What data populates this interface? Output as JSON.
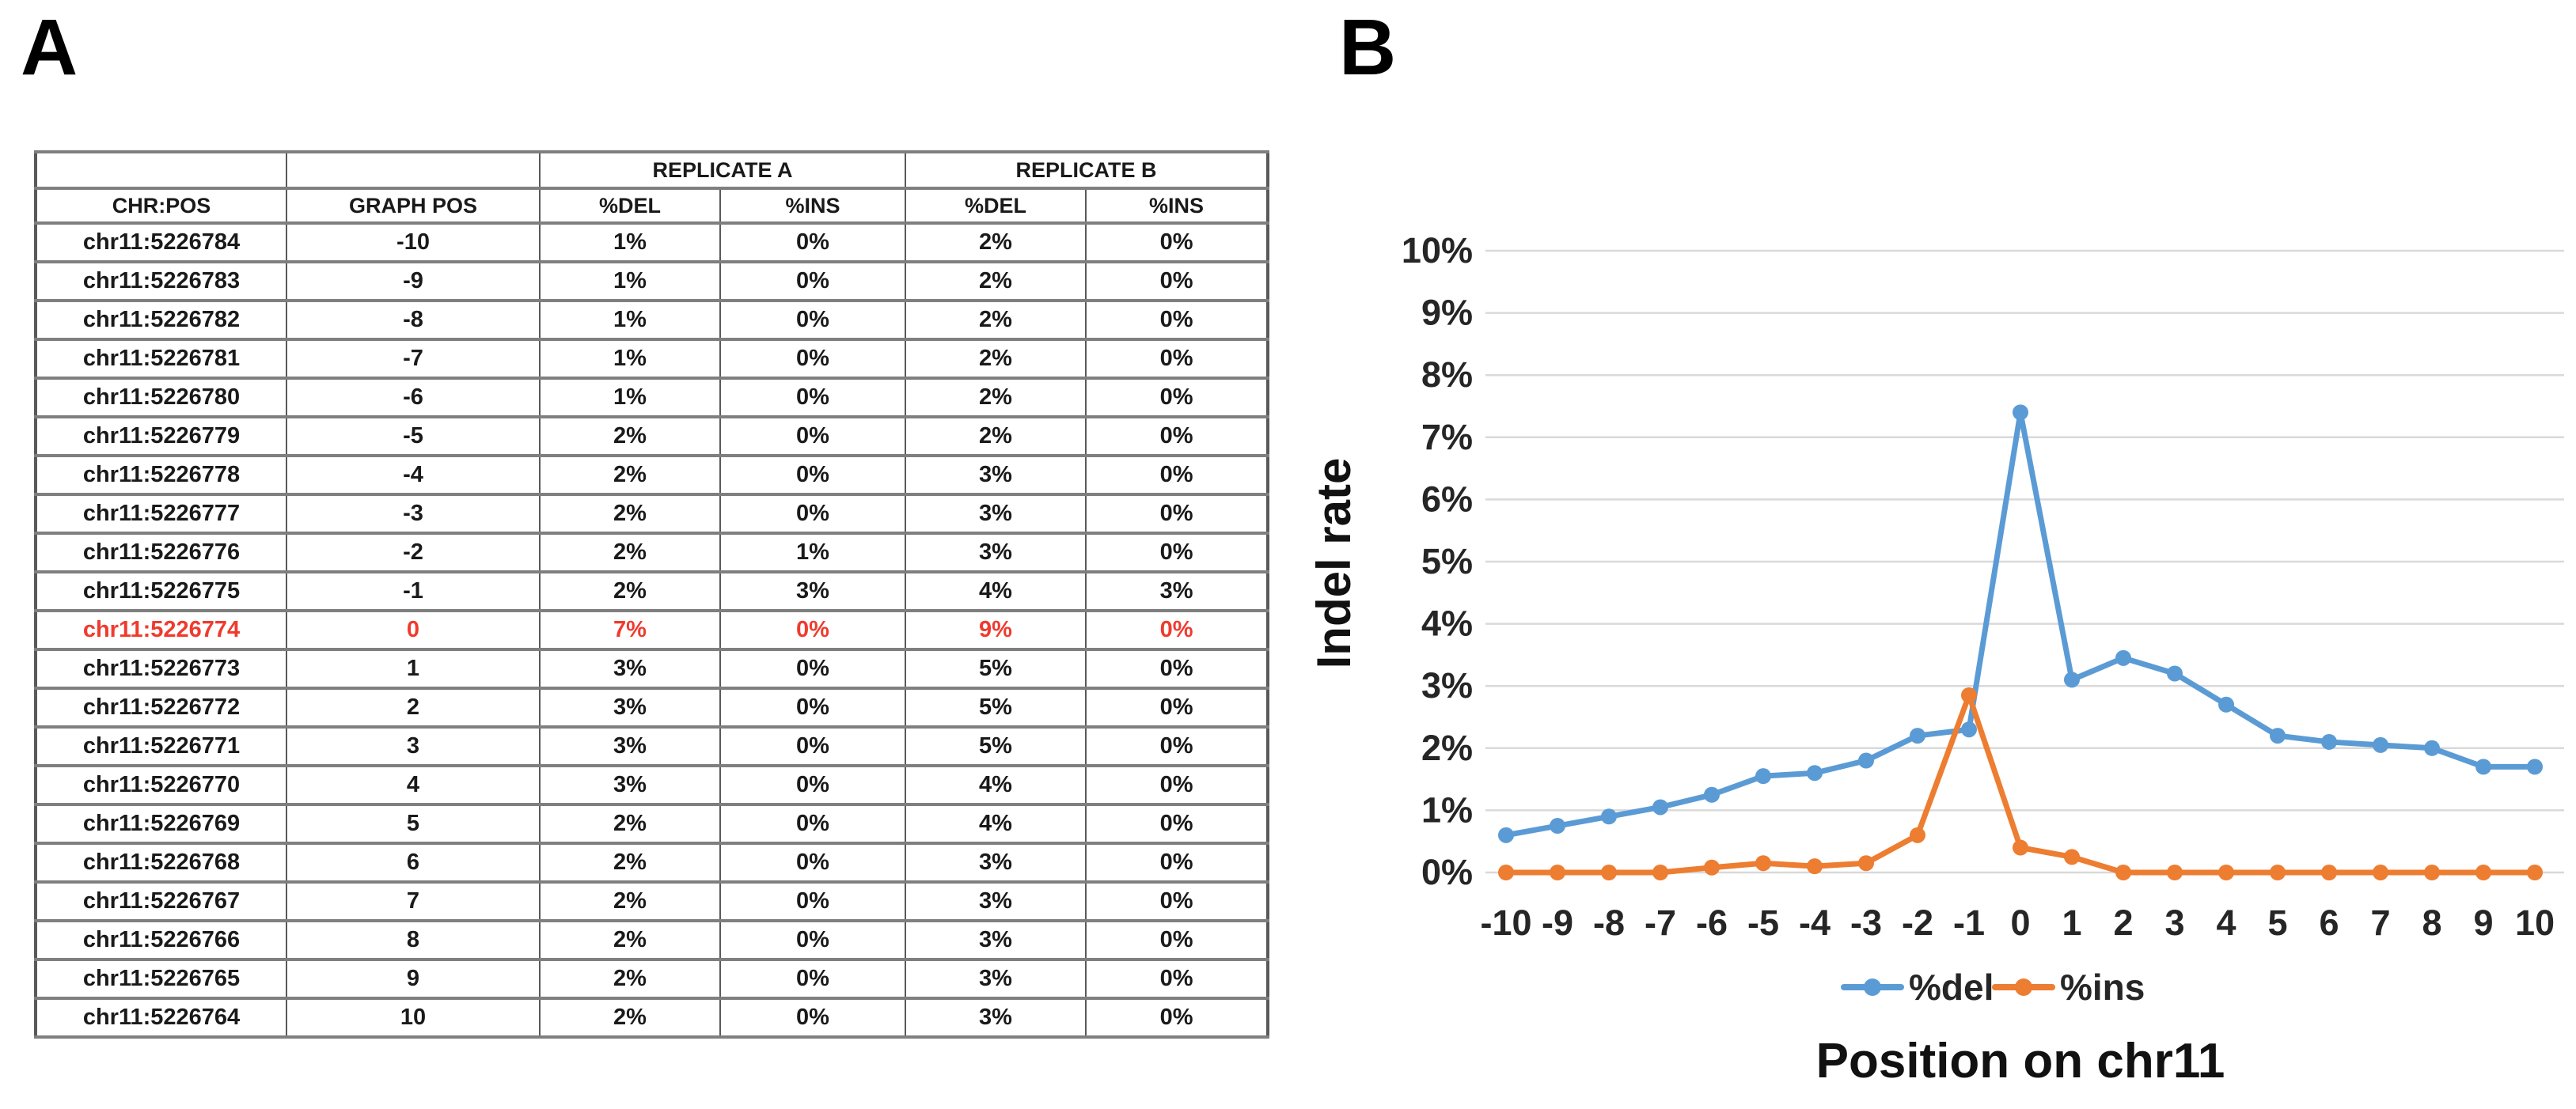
{
  "panels": {
    "a_label": "A",
    "b_label": "B"
  },
  "table": {
    "headers": {
      "chr_pos": "CHR:POS",
      "graph_pos": "GRAPH POS",
      "replicate_a": "REPLICATE A",
      "replicate_b": "REPLICATE B",
      "del": "%DEL",
      "ins": "%INS"
    },
    "rows": [
      {
        "chr_pos": "chr11:5226784",
        "graph_pos": "-10",
        "a_del": "1%",
        "a_ins": "0%",
        "b_del": "2%",
        "b_ins": "0%",
        "highlight": false
      },
      {
        "chr_pos": "chr11:5226783",
        "graph_pos": "-9",
        "a_del": "1%",
        "a_ins": "0%",
        "b_del": "2%",
        "b_ins": "0%",
        "highlight": false
      },
      {
        "chr_pos": "chr11:5226782",
        "graph_pos": "-8",
        "a_del": "1%",
        "a_ins": "0%",
        "b_del": "2%",
        "b_ins": "0%",
        "highlight": false
      },
      {
        "chr_pos": "chr11:5226781",
        "graph_pos": "-7",
        "a_del": "1%",
        "a_ins": "0%",
        "b_del": "2%",
        "b_ins": "0%",
        "highlight": false
      },
      {
        "chr_pos": "chr11:5226780",
        "graph_pos": "-6",
        "a_del": "1%",
        "a_ins": "0%",
        "b_del": "2%",
        "b_ins": "0%",
        "highlight": false
      },
      {
        "chr_pos": "chr11:5226779",
        "graph_pos": "-5",
        "a_del": "2%",
        "a_ins": "0%",
        "b_del": "2%",
        "b_ins": "0%",
        "highlight": false
      },
      {
        "chr_pos": "chr11:5226778",
        "graph_pos": "-4",
        "a_del": "2%",
        "a_ins": "0%",
        "b_del": "3%",
        "b_ins": "0%",
        "highlight": false
      },
      {
        "chr_pos": "chr11:5226777",
        "graph_pos": "-3",
        "a_del": "2%",
        "a_ins": "0%",
        "b_del": "3%",
        "b_ins": "0%",
        "highlight": false
      },
      {
        "chr_pos": "chr11:5226776",
        "graph_pos": "-2",
        "a_del": "2%",
        "a_ins": "1%",
        "b_del": "3%",
        "b_ins": "0%",
        "highlight": false
      },
      {
        "chr_pos": "chr11:5226775",
        "graph_pos": "-1",
        "a_del": "2%",
        "a_ins": "3%",
        "b_del": "4%",
        "b_ins": "3%",
        "highlight": false
      },
      {
        "chr_pos": "chr11:5226774",
        "graph_pos": "0",
        "a_del": "7%",
        "a_ins": "0%",
        "b_del": "9%",
        "b_ins": "0%",
        "highlight": true
      },
      {
        "chr_pos": "chr11:5226773",
        "graph_pos": "1",
        "a_del": "3%",
        "a_ins": "0%",
        "b_del": "5%",
        "b_ins": "0%",
        "highlight": false
      },
      {
        "chr_pos": "chr11:5226772",
        "graph_pos": "2",
        "a_del": "3%",
        "a_ins": "0%",
        "b_del": "5%",
        "b_ins": "0%",
        "highlight": false
      },
      {
        "chr_pos": "chr11:5226771",
        "graph_pos": "3",
        "a_del": "3%",
        "a_ins": "0%",
        "b_del": "5%",
        "b_ins": "0%",
        "highlight": false
      },
      {
        "chr_pos": "chr11:5226770",
        "graph_pos": "4",
        "a_del": "3%",
        "a_ins": "0%",
        "b_del": "4%",
        "b_ins": "0%",
        "highlight": false
      },
      {
        "chr_pos": "chr11:5226769",
        "graph_pos": "5",
        "a_del": "2%",
        "a_ins": "0%",
        "b_del": "4%",
        "b_ins": "0%",
        "highlight": false
      },
      {
        "chr_pos": "chr11:5226768",
        "graph_pos": "6",
        "a_del": "2%",
        "a_ins": "0%",
        "b_del": "3%",
        "b_ins": "0%",
        "highlight": false
      },
      {
        "chr_pos": "chr11:5226767",
        "graph_pos": "7",
        "a_del": "2%",
        "a_ins": "0%",
        "b_del": "3%",
        "b_ins": "0%",
        "highlight": false
      },
      {
        "chr_pos": "chr11:5226766",
        "graph_pos": "8",
        "a_del": "2%",
        "a_ins": "0%",
        "b_del": "3%",
        "b_ins": "0%",
        "highlight": false
      },
      {
        "chr_pos": "chr11:5226765",
        "graph_pos": "9",
        "a_del": "2%",
        "a_ins": "0%",
        "b_del": "3%",
        "b_ins": "0%",
        "highlight": false
      },
      {
        "chr_pos": "chr11:5226764",
        "graph_pos": "10",
        "a_del": "2%",
        "a_ins": "0%",
        "b_del": "3%",
        "b_ins": "0%",
        "highlight": false
      }
    ]
  },
  "chart_data": {
    "type": "line",
    "x": [
      -10,
      -9,
      -8,
      -7,
      -6,
      -5,
      -4,
      -3,
      -2,
      -1,
      0,
      1,
      2,
      3,
      4,
      5,
      6,
      7,
      8,
      9,
      10
    ],
    "series": [
      {
        "name": "%del",
        "color": "#5B9BD5",
        "values": [
          0.6,
          0.75,
          0.9,
          1.05,
          1.25,
          1.55,
          1.6,
          1.8,
          2.2,
          2.3,
          7.4,
          3.1,
          3.45,
          3.2,
          2.7,
          2.2,
          2.1,
          2.05,
          2.0,
          1.7,
          1.7
        ]
      },
      {
        "name": "%ins",
        "color": "#ED7D31",
        "values": [
          0,
          0,
          0,
          0,
          0.08,
          0.15,
          0.1,
          0.15,
          0.6,
          2.85,
          0.4,
          0.25,
          0,
          0,
          0,
          0,
          0,
          0,
          0,
          0,
          0
        ]
      }
    ],
    "title": "",
    "xlabel": "Position on chr11",
    "ylabel": "Indel rate",
    "ylim": [
      0,
      10
    ],
    "ytick_step": 1,
    "ytick_suffix": "%",
    "grid": true,
    "legend_position": "bottom"
  },
  "colors": {
    "grid": "#d9d9d9",
    "axis_text": "#262626",
    "highlight_text": "#ef3b2e",
    "cell_del": "#dce6f1",
    "cell_ins": "#fce4d6",
    "series_del": "#5B9BD5",
    "series_ins": "#ED7D31"
  }
}
